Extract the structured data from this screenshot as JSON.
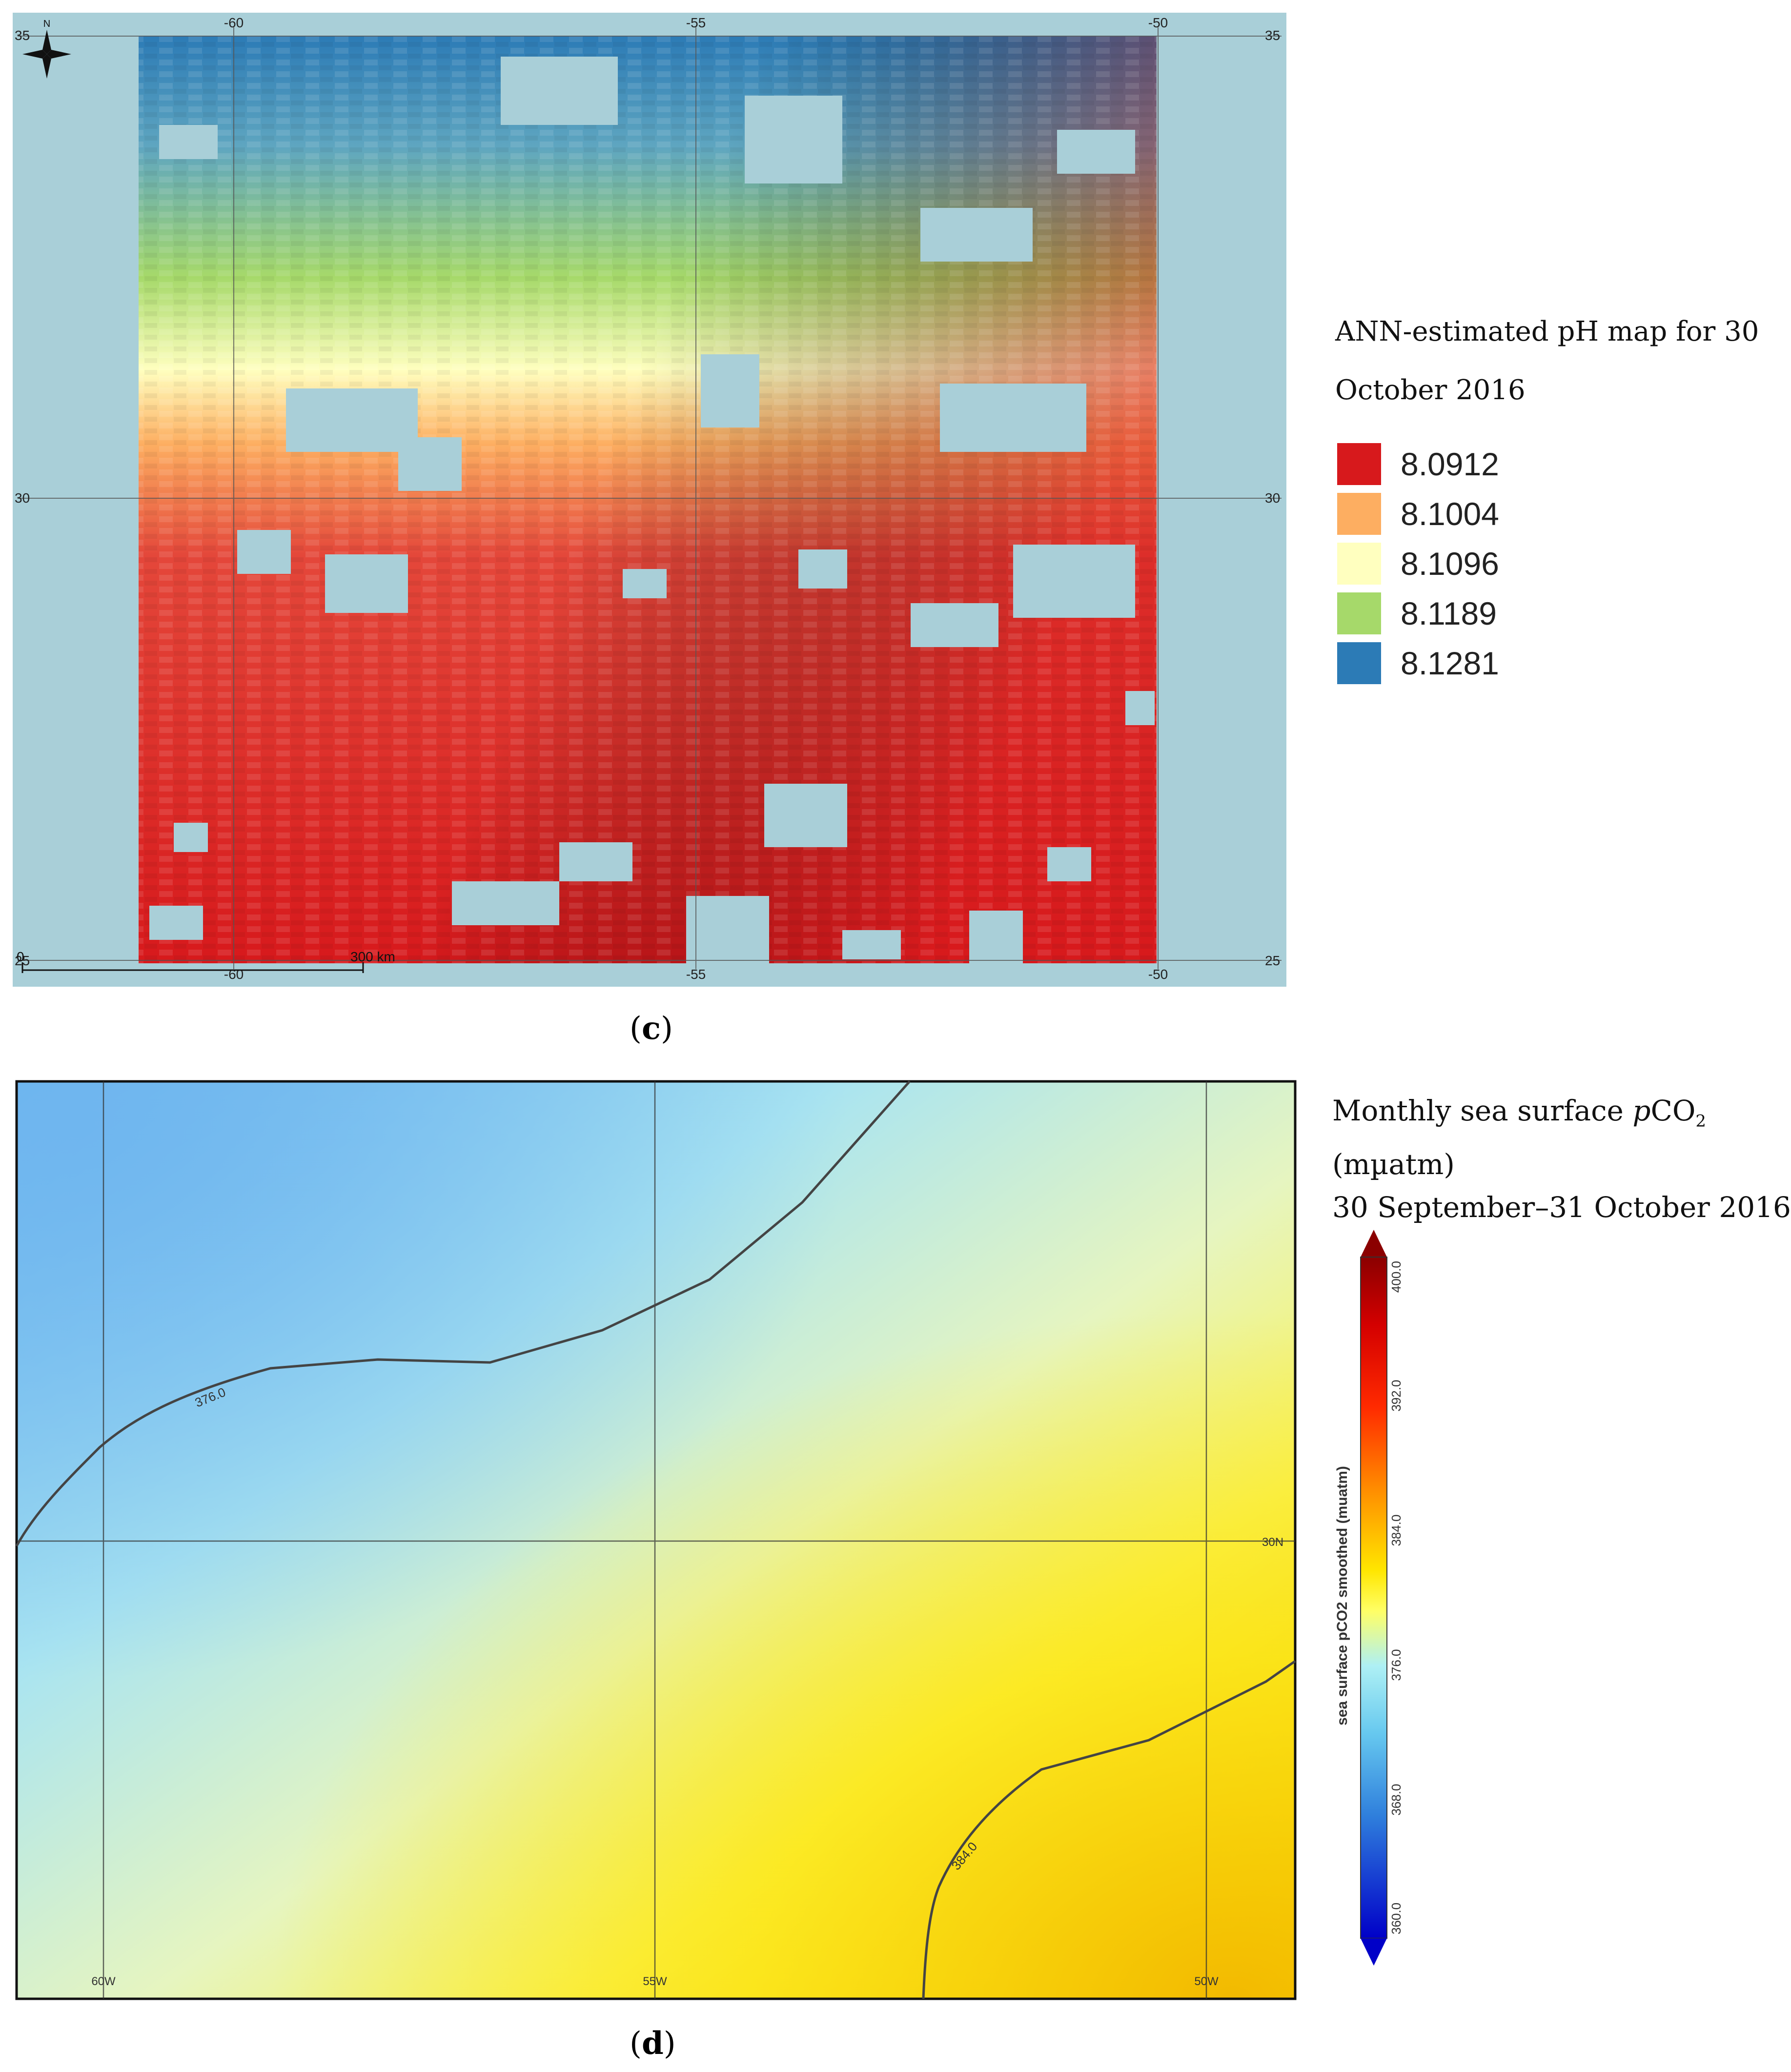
{
  "panel_c": {
    "label": "c",
    "legend_title": "ANN-estimated pH map for 30 October 2016",
    "legend": [
      {
        "value": "8.0912",
        "color": "#d7191c"
      },
      {
        "value": "8.1004",
        "color": "#fdae61"
      },
      {
        "value": "8.1096",
        "color": "#ffffbf"
      },
      {
        "value": "8.1189",
        "color": "#a6d96a"
      },
      {
        "value": "8.1281",
        "color": "#2c7bb6"
      }
    ],
    "lon_ticks": [
      "-60",
      "-55",
      "-50"
    ],
    "lat_ticks": [
      "35",
      "30",
      "25"
    ],
    "scale_bar": {
      "start": "0",
      "end": "300 km"
    },
    "north_label": "N",
    "water_color": "#a9cfd8"
  },
  "panel_d": {
    "label": "d",
    "legend_title_main": "Monthly sea surface ",
    "legend_title_italic": "p",
    "legend_title_co2": "CO",
    "legend_title_sub": "2",
    "legend_title_unit": "(mµatm)",
    "legend_title_dates": "30 September–31 October 2016",
    "colorbar_label": "sea surface pCO2 smoothed (muatm)",
    "colorbar_ticks": [
      "400.0",
      "392.0",
      "384.0",
      "376.0",
      "368.0",
      "360.0"
    ],
    "lon_labels": [
      "60W",
      "55W",
      "50W"
    ],
    "lat_label": "30N",
    "contours": [
      "376.0",
      "384.0"
    ]
  }
}
